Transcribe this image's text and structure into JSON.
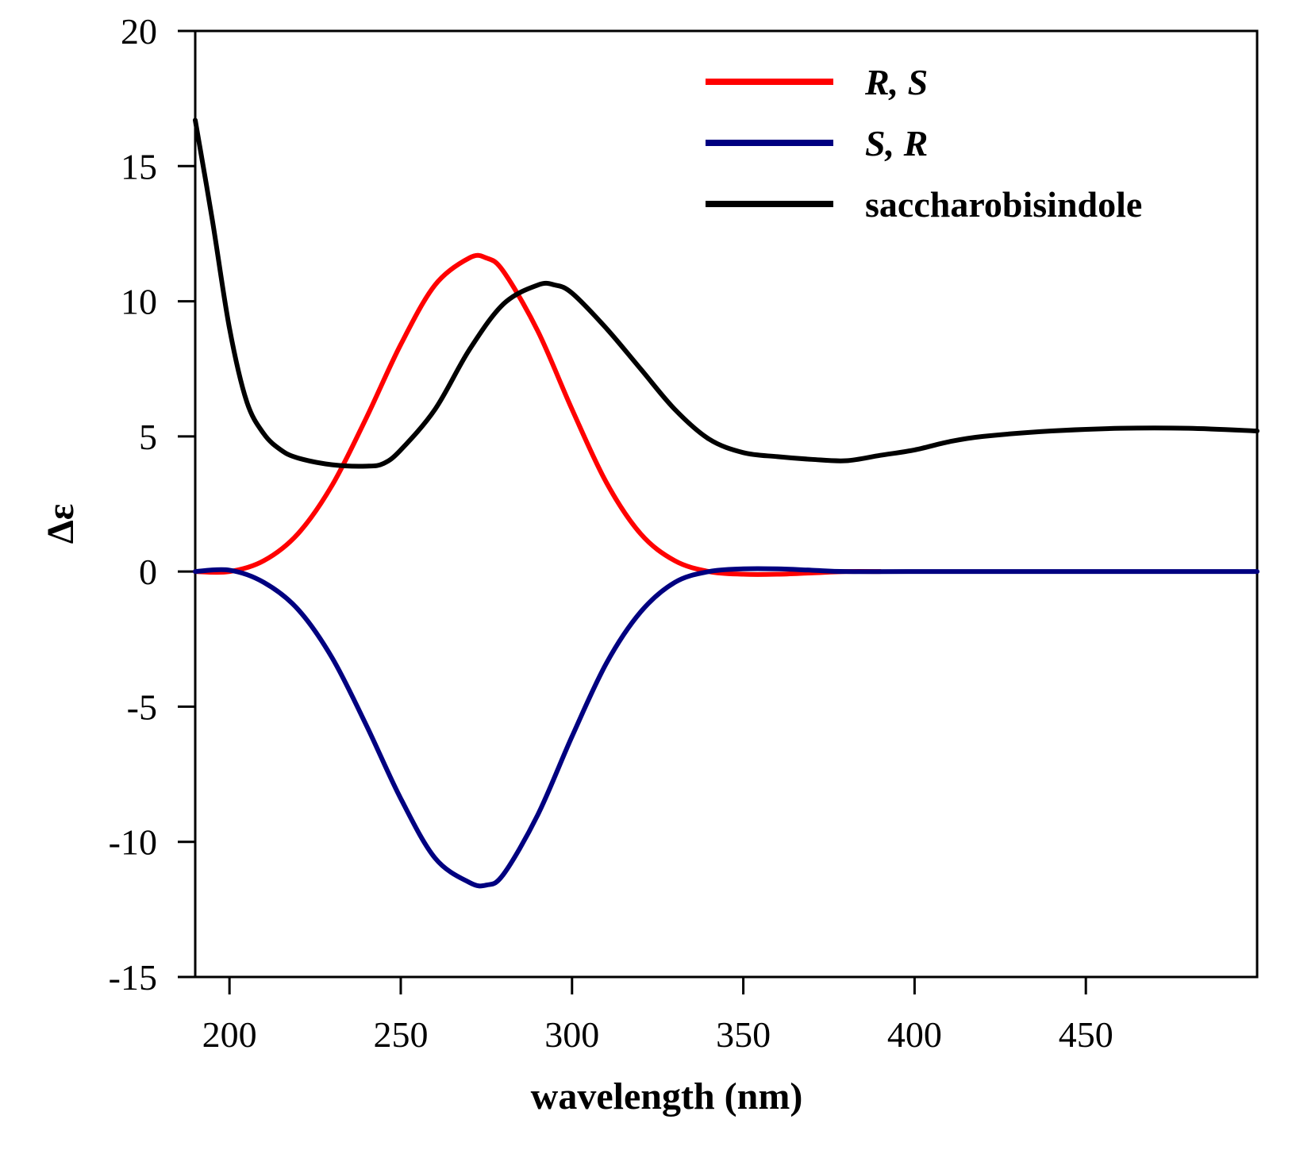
{
  "chart_data": {
    "type": "line",
    "title": "",
    "xlabel": "wavelength (nm)",
    "ylabel": "Δε",
    "xlim": [
      190,
      500
    ],
    "ylim": [
      -15,
      20
    ],
    "x_ticks": [
      200,
      250,
      300,
      350,
      400,
      450
    ],
    "y_ticks": [
      -15,
      -10,
      -5,
      0,
      5,
      10,
      15,
      20
    ],
    "grid": false,
    "legend_position": "top-right",
    "series": [
      {
        "name": "R, S",
        "italic": true,
        "color": "#ff0000",
        "x": [
          190,
          200,
          210,
          220,
          230,
          240,
          250,
          260,
          270,
          275,
          280,
          290,
          300,
          310,
          320,
          330,
          340,
          350,
          360,
          370,
          380,
          390
        ],
        "y": [
          0,
          0,
          0.4,
          1.4,
          3.2,
          5.7,
          8.4,
          10.6,
          11.6,
          11.6,
          11.1,
          8.9,
          6.0,
          3.3,
          1.4,
          0.4,
          0,
          -0.1,
          -0.1,
          -0.05,
          0,
          0
        ]
      },
      {
        "name": "S, R",
        "italic": true,
        "color": "#000080",
        "x": [
          190,
          200,
          210,
          220,
          230,
          240,
          250,
          260,
          270,
          275,
          280,
          290,
          300,
          310,
          320,
          330,
          340,
          350,
          360,
          370,
          380,
          400,
          450,
          500
        ],
        "y": [
          0,
          0.05,
          -0.4,
          -1.4,
          -3.2,
          -5.7,
          -8.4,
          -10.6,
          -11.5,
          -11.6,
          -11.2,
          -9.0,
          -6.1,
          -3.4,
          -1.5,
          -0.4,
          0,
          0.1,
          0.1,
          0.05,
          0,
          0,
          0,
          0
        ]
      },
      {
        "name": "saccharobisindole",
        "italic": false,
        "color": "#000000",
        "x": [
          190,
          195,
          200,
          205,
          210,
          215,
          220,
          230,
          240,
          245,
          250,
          260,
          270,
          280,
          290,
          295,
          300,
          310,
          320,
          330,
          340,
          350,
          360,
          370,
          380,
          390,
          400,
          410,
          420,
          440,
          460,
          480,
          500
        ],
        "y": [
          16.7,
          13.0,
          9.0,
          6.3,
          5.1,
          4.5,
          4.2,
          3.95,
          3.9,
          4.0,
          4.5,
          6.0,
          8.2,
          9.9,
          10.6,
          10.6,
          10.3,
          9.0,
          7.5,
          6.0,
          4.9,
          4.4,
          4.25,
          4.15,
          4.1,
          4.3,
          4.5,
          4.8,
          5.0,
          5.2,
          5.3,
          5.3,
          5.2
        ]
      }
    ]
  }
}
